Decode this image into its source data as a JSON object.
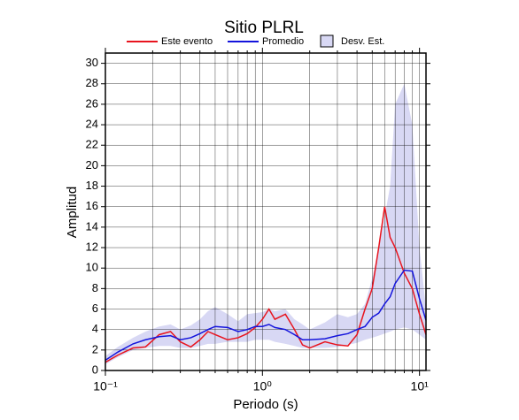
{
  "chart_data": {
    "type": "line",
    "title": "Sitio PLRL",
    "x_label": "Periodo (s)",
    "y_label": "Amplitud",
    "log_x": true,
    "grid": true,
    "xlim": [
      0.1,
      11
    ],
    "ylim": [
      0,
      31
    ],
    "xticks": [
      {
        "value": 0.1,
        "label": "10⁻¹"
      },
      {
        "value": 1,
        "label": "10⁰"
      },
      {
        "value": 10,
        "label": "10¹"
      }
    ],
    "xgrid": [
      0.2,
      0.3,
      0.4,
      0.5,
      0.6,
      0.7,
      0.8,
      0.9,
      2,
      3,
      4,
      5,
      6,
      7,
      8,
      9
    ],
    "yticks": [
      0,
      2,
      4,
      6,
      8,
      10,
      12,
      14,
      16,
      18,
      20,
      22,
      24,
      26,
      28,
      30
    ],
    "x": [
      0.1,
      0.12,
      0.15,
      0.18,
      0.22,
      0.26,
      0.3,
      0.35,
      0.4,
      0.45,
      0.5,
      0.6,
      0.7,
      0.8,
      0.9,
      1.0,
      1.1,
      1.2,
      1.4,
      1.6,
      1.8,
      2.0,
      2.5,
      3.0,
      3.5,
      4.0,
      4.5,
      5.0,
      5.5,
      6.0,
      6.5,
      7.0,
      8.0,
      9.0,
      10.0,
      11.0
    ],
    "band": {
      "name": "Desv. Est.",
      "color": "#d8d8f4",
      "low": [
        0.6,
        1.3,
        2.0,
        2.2,
        2.4,
        2.4,
        2.2,
        2.2,
        2.4,
        2.6,
        2.6,
        2.8,
        2.8,
        2.8,
        3.0,
        3.0,
        3.0,
        2.8,
        2.6,
        2.4,
        2.2,
        2.2,
        2.2,
        2.3,
        2.5,
        2.7,
        3.0,
        3.2,
        3.4,
        3.6,
        3.8,
        4.0,
        4.2,
        4.0,
        3.5,
        3.0
      ],
      "high": [
        1.4,
        2.3,
        3.2,
        3.8,
        4.3,
        4.5,
        4.0,
        4.4,
        5.0,
        5.8,
        6.2,
        5.5,
        4.8,
        5.5,
        5.6,
        5.7,
        6.0,
        5.8,
        6.0,
        5.0,
        4.5,
        4.0,
        4.7,
        5.5,
        5.2,
        5.5,
        6.5,
        9,
        12,
        15,
        18,
        26,
        28,
        24,
        12,
        6
      ]
    },
    "series": [
      {
        "name": "Este evento",
        "color": "#e8141e",
        "values": [
          0.8,
          1.5,
          2.2,
          2.3,
          3.5,
          3.8,
          2.8,
          2.3,
          3.0,
          3.8,
          3.5,
          3.0,
          3.2,
          3.6,
          4.2,
          5.0,
          6.0,
          5.0,
          5.5,
          4.0,
          2.5,
          2.2,
          2.8,
          2.5,
          2.4,
          3.5,
          6.0,
          8.0,
          12,
          16,
          13,
          12,
          9.5,
          8.0,
          5.5,
          3.5
        ]
      },
      {
        "name": "Promedio",
        "color": "#1414dc",
        "values": [
          1.0,
          1.8,
          2.6,
          3.0,
          3.3,
          3.4,
          3.0,
          3.2,
          3.6,
          4.0,
          4.3,
          4.2,
          3.8,
          4.0,
          4.3,
          4.3,
          4.5,
          4.2,
          4.0,
          3.5,
          3.0,
          3.0,
          3.1,
          3.4,
          3.6,
          4.0,
          4.3,
          5.2,
          5.6,
          6.5,
          7.2,
          8.5,
          9.8,
          9.7,
          7,
          4.9
        ]
      }
    ]
  }
}
